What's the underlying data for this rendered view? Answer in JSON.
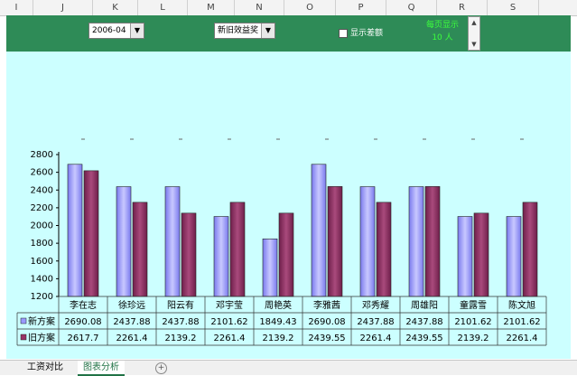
{
  "columns": [
    "I",
    "J",
    "K",
    "L",
    "M",
    "N",
    "O",
    "P",
    "Q",
    "R",
    "S"
  ],
  "toolbar": {
    "month": "2006-04",
    "view": "新旧效益奖",
    "show_diff": "显示差额",
    "count_label": "每页显示",
    "count_value": "10 人"
  },
  "chart_data": {
    "type": "bar",
    "categories": [
      "李在志",
      "徐珍远",
      "阳云有",
      "邓宇莹",
      "周艳英",
      "李雅茜",
      "邓秀耀",
      "周雄阳",
      "童露雪",
      "陈文旭"
    ],
    "series": [
      {
        "name": "新方案",
        "values": [
          2690.08,
          2437.88,
          2437.88,
          2101.62,
          1849.43,
          2690.08,
          2437.88,
          2437.88,
          2101.62,
          2101.62
        ],
        "labels": [
          "2690.08",
          "2437.88",
          "2437.88",
          "2101.62",
          "1849.43",
          "2690.08",
          "2437.88",
          "2437.88",
          "2101.62",
          "2101.62"
        ],
        "color": "#9999ff"
      },
      {
        "name": "旧方案",
        "values": [
          2617.7,
          2261.4,
          2139.2,
          2261.4,
          2139.2,
          2439.55,
          2261.4,
          2439.55,
          2139.2,
          2261.4
        ],
        "labels": [
          "2617.7",
          "2261.4",
          "2139.2",
          "2261.4",
          "2139.2",
          "2439.55",
          "2261.4",
          "2439.55",
          "2139.2",
          "2261.4"
        ],
        "color": "#993366"
      }
    ],
    "yticks": [
      "1200",
      "1400",
      "1600",
      "1800",
      "2000",
      "2200",
      "2400",
      "2600",
      "2800"
    ],
    "ylim": [
      1200,
      2800
    ]
  },
  "sheets": [
    "工资对比",
    "图表分析"
  ],
  "add_sheet": "+"
}
